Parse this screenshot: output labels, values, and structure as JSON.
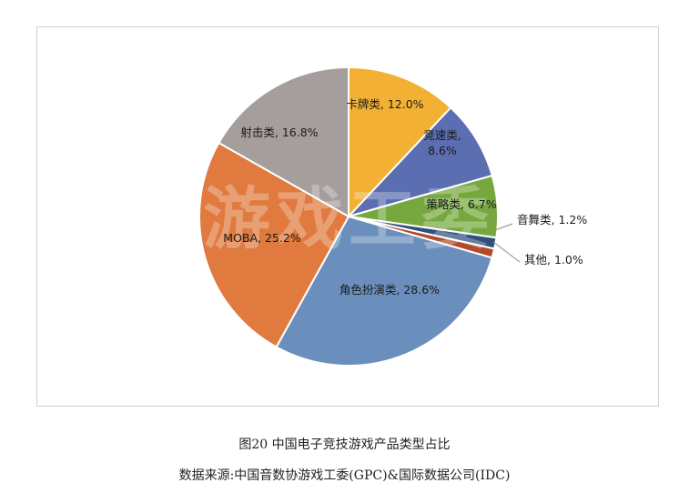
{
  "chart_data": {
    "type": "pie",
    "slices": [
      {
        "label": "卡牌类",
        "value": 12.0,
        "label_text": "卡牌类, 12.0%",
        "color": "#f2b133"
      },
      {
        "label": "竞速类",
        "value": 8.6,
        "label_text": "竞速类,\n8.6%",
        "color": "#5b6eb1"
      },
      {
        "label": "策略类",
        "value": 6.7,
        "label_text": "策略类, 6.7%",
        "color": "#77a83f"
      },
      {
        "label": "音舞类",
        "value": 1.2,
        "label_text": "音舞类, 1.2%",
        "color": "#2f4f7f"
      },
      {
        "label": "其他",
        "value": 1.0,
        "label_text": "其他, 1.0%",
        "color": "#b34a2a"
      },
      {
        "label": "角色扮演类",
        "value": 28.6,
        "label_text": "角色扮演类, 28.6%",
        "color": "#6b8fbc"
      },
      {
        "label": "MOBA",
        "value": 25.2,
        "label_text": "MOBA, 25.2%",
        "color": "#e07a3f"
      },
      {
        "label": "射击类",
        "value": 16.8,
        "label_text": "射击类, 16.8%",
        "color": "#a59e9c"
      }
    ],
    "watermark": "游戏工委"
  },
  "captions": {
    "figure": "图20 中国电子竞技游戏产品类型占比",
    "source": "数据来源:中国音数协游戏工委(GPC)&国际数据公司(IDC)"
  }
}
